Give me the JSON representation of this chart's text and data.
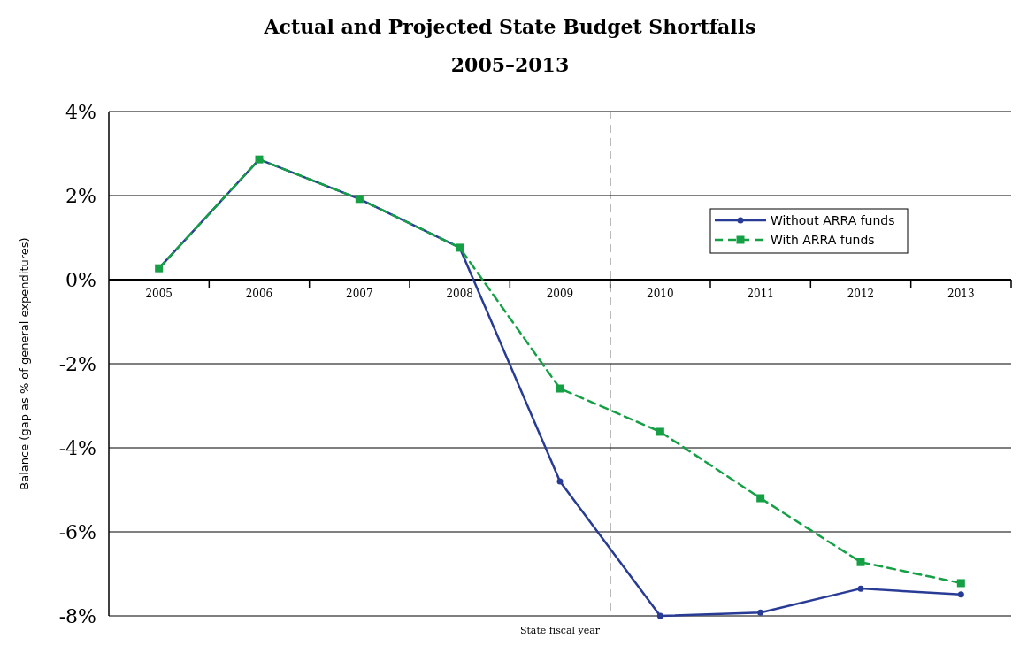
{
  "chart_data": {
    "type": "line",
    "title": "Actual and Projected State Budget Shortfalls",
    "subtitle": "2005–2013",
    "xlabel": "State fiscal year",
    "ylabel": "Balance (gap as % of general expenditures)",
    "x": [
      2005,
      2006,
      2007,
      2008,
      2009,
      2010,
      2011,
      2012,
      2013
    ],
    "xlim": [
      2004.5,
      2013.5
    ],
    "xticks": [
      2005,
      2006,
      2007,
      2008,
      2009,
      2010,
      2011,
      2012,
      2013
    ],
    "ylim": [
      -8,
      4
    ],
    "yticks": [
      {
        "value": -8,
        "label": "-8%"
      },
      {
        "value": -6,
        "label": "-6%"
      },
      {
        "value": -4,
        "label": "-4%"
      },
      {
        "value": -2,
        "label": "-2%"
      },
      {
        "value": 0,
        "label": "0%"
      },
      {
        "value": 2,
        "label": "2%"
      },
      {
        "value": 4,
        "label": "4%"
      }
    ],
    "series": [
      {
        "name": "Without ARRA funds",
        "color": "#283c96",
        "marker": "circle",
        "line_style": "solid",
        "values": [
          0.27,
          2.86,
          1.92,
          0.76,
          -4.8,
          -8.0,
          -7.92,
          -7.35,
          -7.49
        ]
      },
      {
        "name": "With ARRA funds",
        "color": "#16a046",
        "marker": "square",
        "line_style": "dashed",
        "values": [
          0.27,
          2.86,
          1.92,
          0.76,
          -2.59,
          -3.62,
          -5.2,
          -6.72,
          -7.22
        ]
      }
    ],
    "ref_lines": [
      {
        "axis": "x",
        "value": 2009.5,
        "color": "#000000",
        "line_style": "dashed"
      }
    ],
    "grid": "y",
    "legend": "top right"
  }
}
